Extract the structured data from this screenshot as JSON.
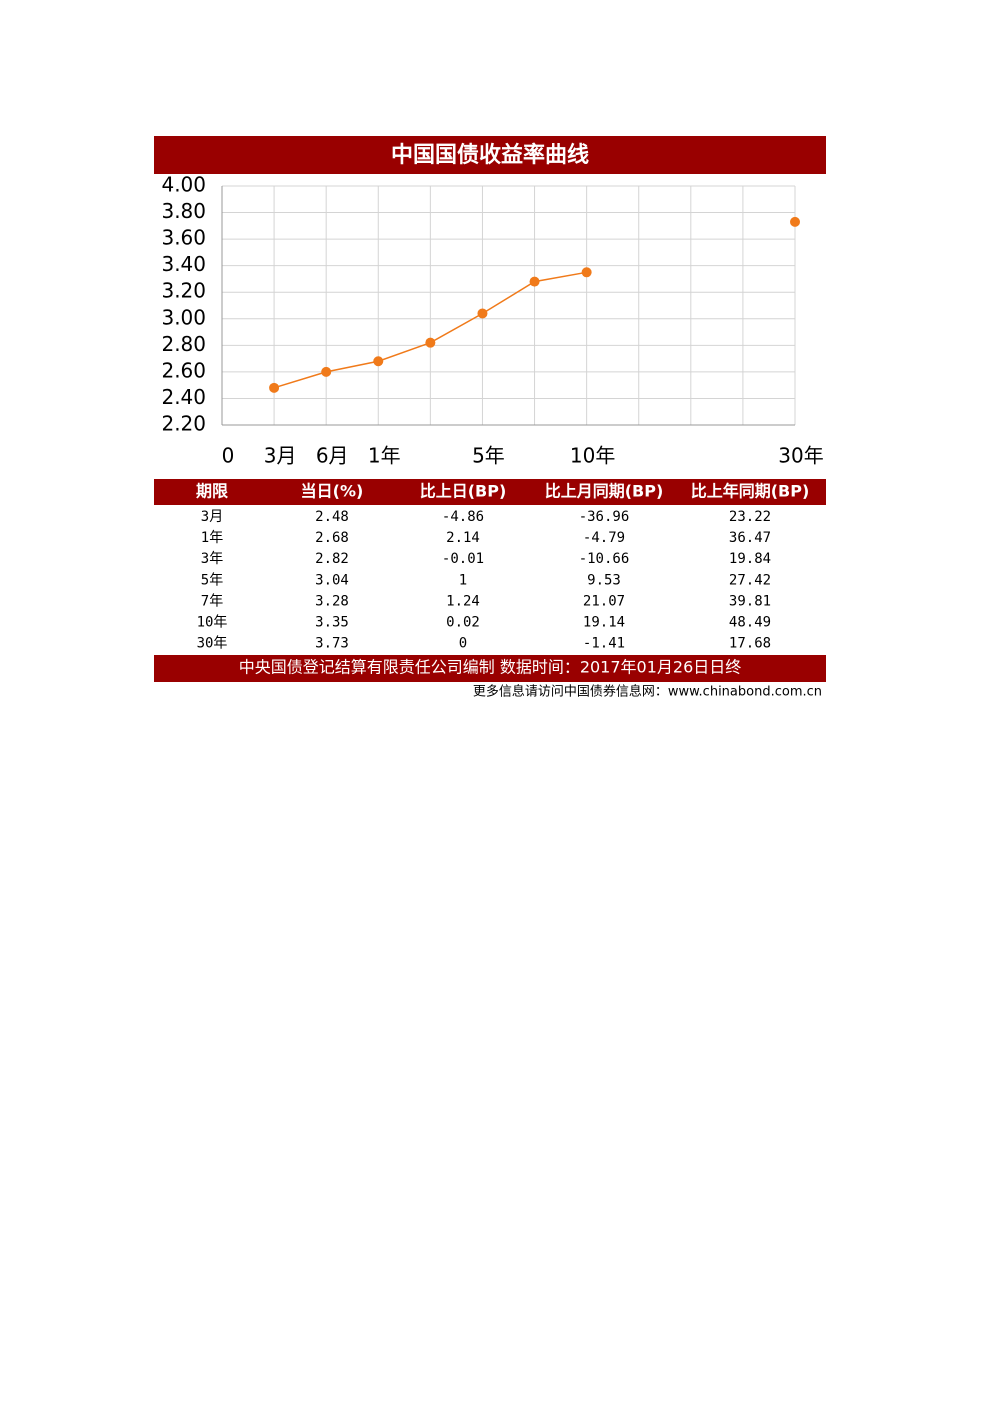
{
  "chart_data": {
    "type": "line",
    "title": "中国国债收益率曲线",
    "categories": [
      "0",
      "3月",
      "6月",
      "1年",
      null,
      "5年",
      null,
      "10年",
      null,
      null,
      null,
      "30年"
    ],
    "series": [
      {
        "color": "#f07a1a",
        "values": [
          null,
          2.48,
          2.6,
          2.68,
          2.82,
          3.04,
          3.28,
          3.35,
          null,
          null,
          null,
          3.73
        ]
      }
    ],
    "ylim": [
      2.2,
      4.0
    ],
    "yticks": [
      {
        "value": 2.2,
        "label": "2.20"
      },
      {
        "value": 2.4,
        "label": "2.40"
      },
      {
        "value": 2.6,
        "label": "2.60"
      },
      {
        "value": 2.8,
        "label": "2.80"
      },
      {
        "value": 3,
        "label": "3.00"
      },
      {
        "value": 3.2,
        "label": "3.20"
      },
      {
        "value": 3.4,
        "label": "3.40"
      },
      {
        "value": 3.6,
        "label": "3.60"
      },
      {
        "value": 3.8,
        "label": "3.80"
      },
      {
        "value": 4,
        "label": "4.00"
      }
    ],
    "grid": true
  },
  "table": {
    "header": [
      "期限",
      "当日(%)",
      "比上日(BP)",
      "比上月同期(BP)",
      "比上年同期(BP)"
    ],
    "rows": [
      [
        "3月",
        "2.48",
        "-4.86",
        "-36.96",
        "23.22"
      ],
      [
        "1年",
        "2.68",
        "2.14",
        "-4.79",
        "36.47"
      ],
      [
        "3年",
        "2.82",
        "-0.01",
        "-10.66",
        "19.84"
      ],
      [
        "5年",
        "3.04",
        "1",
        "9.53",
        "27.42"
      ],
      [
        "7年",
        "3.28",
        "1.24",
        "21.07",
        "39.81"
      ],
      [
        "10年",
        "3.35",
        "0.02",
        "19.14",
        "48.49"
      ],
      [
        "30年",
        "3.73",
        "0",
        "-1.41",
        "17.68"
      ]
    ]
  },
  "footer": "中央国债登记结算有限责任公司编制  数据时间：2017年01月26日日终",
  "source": "更多信息请访问中国债券信息网：www.chinabond.com.cn"
}
